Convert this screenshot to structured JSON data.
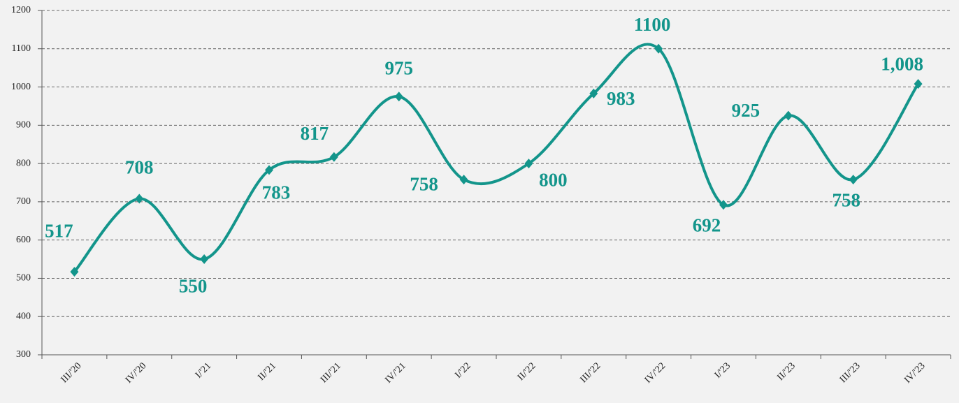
{
  "chart_data": {
    "type": "line",
    "categories": [
      "III/'20",
      "IV/'20",
      "I/'21",
      "II/'21",
      "III/'21",
      "IV/'21",
      "I/'22",
      "II/'22",
      "III/'22",
      "IV/'22",
      "I/'23",
      "II/'23",
      "III/'23",
      "IV/'23"
    ],
    "series": [
      {
        "color": "#13958b",
        "values": [
          517,
          708,
          550,
          783,
          817,
          975,
          758,
          800,
          983,
          1100,
          692,
          925,
          758,
          1008
        ],
        "value_labels": [
          "517",
          "708",
          "550",
          "783",
          "817",
          "975",
          "758",
          "800",
          "983",
          "1100",
          "692",
          "925",
          "758",
          "1,008"
        ]
      }
    ],
    "ylim": [
      300,
      1200
    ],
    "yticks": [
      300,
      400,
      500,
      600,
      700,
      800,
      900,
      1000,
      1100,
      1200
    ],
    "grid": true,
    "smooth": true
  }
}
